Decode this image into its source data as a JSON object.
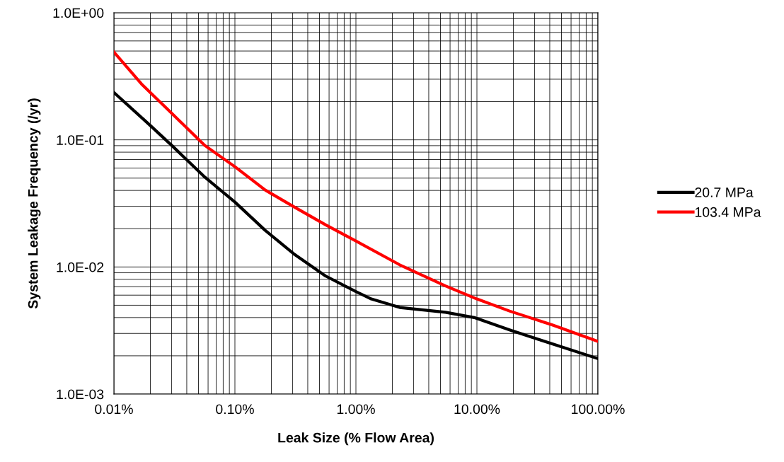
{
  "chart_data": {
    "type": "line",
    "xlabel": "Leak Size (% Flow Area)",
    "ylabel": "System Leakage Frequency (/yr)",
    "log": "xy",
    "grid": true,
    "legend": "right",
    "marker": "none",
    "line_style": "solid",
    "xlim": [
      0.01,
      100
    ],
    "ylim": [
      0.001,
      1
    ],
    "xticks": [
      {
        "value": 0.01,
        "label": "0.01%"
      },
      {
        "value": 0.1,
        "label": "0.10%"
      },
      {
        "value": 1,
        "label": "1.00%"
      },
      {
        "value": 10,
        "label": "10.00%"
      },
      {
        "value": 100,
        "label": "100.00%"
      }
    ],
    "yticks": [
      {
        "value": 0.001,
        "label": "1.0E-03"
      },
      {
        "value": 0.01,
        "label": "1.0E-02"
      },
      {
        "value": 0.1,
        "label": "1.0E-01"
      },
      {
        "value": 1,
        "label": "1.0E+00"
      }
    ],
    "series": [
      {
        "name": "20.7 MPa",
        "color": "#000000",
        "x": [
          0.01,
          0.0194,
          0.0302,
          0.0567,
          0.1,
          0.178,
          0.306,
          0.56,
          1,
          1.34,
          2.3,
          5.5,
          9.5,
          18.6,
          32,
          100
        ],
        "values": [
          0.236,
          0.133,
          0.09,
          0.0507,
          0.0324,
          0.0194,
          0.0127,
          0.0085,
          0.0064,
          0.0056,
          0.0048,
          0.0044,
          0.004,
          0.0032,
          0.0027,
          0.0019
        ]
      },
      {
        "name": "103.4 MPa",
        "color": "#ff0000",
        "x": [
          0.01,
          0.0169,
          0.0302,
          0.0567,
          0.1,
          0.178,
          0.306,
          0.56,
          1,
          2.3,
          5.5,
          10,
          18.6,
          42,
          100
        ],
        "values": [
          0.49,
          0.275,
          0.161,
          0.09,
          0.0615,
          0.0403,
          0.0298,
          0.0215,
          0.016,
          0.0104,
          0.0071,
          0.0056,
          0.0045,
          0.0035,
          0.0026
        ]
      }
    ]
  }
}
